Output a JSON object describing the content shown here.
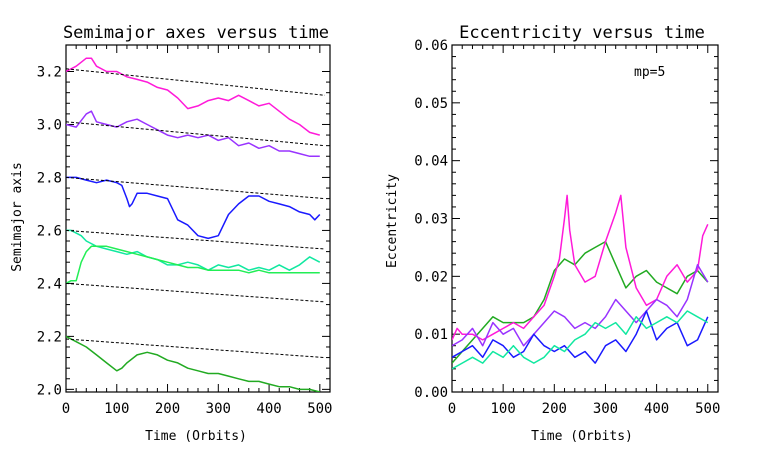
{
  "chart_data": [
    {
      "type": "line",
      "title": "Semimajor axes versus time",
      "xlabel": "Time (Orbits)",
      "ylabel": "Semimajor axis",
      "xlim": [
        0,
        520
      ],
      "ylim": [
        1.99,
        3.3
      ],
      "xticks": [
        "0",
        "100",
        "200",
        "300",
        "400",
        "500"
      ],
      "yticks": [
        "2.0",
        "2.2",
        "2.4",
        "2.6",
        "2.8",
        "3.0",
        "3.2"
      ],
      "series": [
        {
          "name": "magenta",
          "color": "#ff1ad9",
          "x": [
            0,
            20,
            40,
            50,
            60,
            80,
            100,
            120,
            140,
            160,
            180,
            200,
            220,
            240,
            260,
            280,
            300,
            320,
            340,
            360,
            380,
            400,
            420,
            440,
            460,
            480,
            500
          ],
          "y": [
            3.2,
            3.22,
            3.25,
            3.25,
            3.22,
            3.2,
            3.2,
            3.18,
            3.17,
            3.16,
            3.14,
            3.13,
            3.1,
            3.06,
            3.07,
            3.09,
            3.1,
            3.09,
            3.11,
            3.09,
            3.07,
            3.08,
            3.05,
            3.02,
            3.0,
            2.97,
            2.96
          ]
        },
        {
          "name": "violet",
          "color": "#9933ff",
          "x": [
            0,
            20,
            40,
            50,
            60,
            80,
            100,
            120,
            140,
            160,
            180,
            200,
            220,
            240,
            260,
            280,
            300,
            320,
            340,
            360,
            380,
            400,
            420,
            440,
            460,
            480,
            500
          ],
          "y": [
            3.0,
            2.99,
            3.04,
            3.05,
            3.01,
            3.0,
            2.99,
            3.01,
            3.02,
            3.0,
            2.98,
            2.96,
            2.95,
            2.96,
            2.95,
            2.96,
            2.94,
            2.95,
            2.92,
            2.93,
            2.91,
            2.92,
            2.9,
            2.9,
            2.89,
            2.88,
            2.88
          ]
        },
        {
          "name": "blue",
          "color": "#1a1aff",
          "x": [
            0,
            20,
            40,
            60,
            80,
            100,
            110,
            120,
            125,
            130,
            140,
            160,
            180,
            200,
            210,
            220,
            240,
            260,
            280,
            300,
            320,
            340,
            360,
            380,
            400,
            420,
            440,
            460,
            480,
            490,
            500
          ],
          "y": [
            2.8,
            2.8,
            2.79,
            2.78,
            2.79,
            2.78,
            2.77,
            2.72,
            2.69,
            2.7,
            2.74,
            2.74,
            2.73,
            2.72,
            2.68,
            2.64,
            2.62,
            2.58,
            2.57,
            2.58,
            2.66,
            2.7,
            2.73,
            2.73,
            2.71,
            2.7,
            2.69,
            2.67,
            2.66,
            2.64,
            2.66
          ]
        },
        {
          "name": "aquamarine",
          "color": "#11e8a0",
          "x": [
            0,
            10,
            20,
            30,
            40,
            60,
            80,
            100,
            120,
            140,
            160,
            180,
            200,
            220,
            240,
            260,
            280,
            300,
            320,
            340,
            360,
            380,
            400,
            420,
            440,
            460,
            480,
            500
          ],
          "y": [
            2.6,
            2.6,
            2.59,
            2.58,
            2.56,
            2.54,
            2.53,
            2.52,
            2.51,
            2.52,
            2.5,
            2.49,
            2.47,
            2.47,
            2.48,
            2.47,
            2.45,
            2.47,
            2.46,
            2.47,
            2.45,
            2.46,
            2.45,
            2.47,
            2.45,
            2.47,
            2.5,
            2.48
          ]
        },
        {
          "name": "green-aqua",
          "color": "#22ee55",
          "x": [
            0,
            10,
            20,
            30,
            40,
            50,
            60,
            80,
            100,
            120,
            140,
            160,
            180,
            200,
            220,
            240,
            260,
            280,
            300,
            320,
            340,
            360,
            380,
            400,
            420,
            440,
            460,
            480,
            500
          ],
          "y": [
            2.4,
            2.41,
            2.41,
            2.48,
            2.52,
            2.54,
            2.54,
            2.54,
            2.53,
            2.52,
            2.51,
            2.5,
            2.49,
            2.48,
            2.47,
            2.46,
            2.46,
            2.45,
            2.45,
            2.45,
            2.45,
            2.44,
            2.45,
            2.44,
            2.44,
            2.44,
            2.44,
            2.44,
            2.44
          ]
        },
        {
          "name": "green",
          "color": "#22aa22",
          "x": [
            0,
            20,
            40,
            60,
            80,
            100,
            110,
            120,
            140,
            160,
            180,
            200,
            220,
            240,
            260,
            280,
            300,
            320,
            340,
            360,
            380,
            400,
            420,
            440,
            460,
            480,
            500
          ],
          "y": [
            2.2,
            2.18,
            2.16,
            2.13,
            2.1,
            2.07,
            2.08,
            2.1,
            2.13,
            2.14,
            2.13,
            2.11,
            2.1,
            2.08,
            2.07,
            2.06,
            2.06,
            2.05,
            2.04,
            2.03,
            2.03,
            2.02,
            2.01,
            2.01,
            2.0,
            2.0,
            1.99
          ]
        },
        {
          "name": "ref-1",
          "style": "dashed",
          "color": "#000000",
          "x": [
            0,
            510
          ],
          "y": [
            3.21,
            3.11
          ]
        },
        {
          "name": "ref-2",
          "style": "dashed",
          "color": "#000000",
          "x": [
            0,
            510
          ],
          "y": [
            3.01,
            2.92
          ]
        },
        {
          "name": "ref-3",
          "style": "dashed",
          "color": "#000000",
          "x": [
            0,
            510
          ],
          "y": [
            2.8,
            2.72
          ]
        },
        {
          "name": "ref-4",
          "style": "dashed",
          "color": "#000000",
          "x": [
            0,
            510
          ],
          "y": [
            2.6,
            2.53
          ]
        },
        {
          "name": "ref-5",
          "style": "dashed",
          "color": "#000000",
          "x": [
            0,
            510
          ],
          "y": [
            2.4,
            2.33
          ]
        },
        {
          "name": "ref-6",
          "style": "dashed",
          "color": "#000000",
          "x": [
            0,
            510
          ],
          "y": [
            2.19,
            2.12
          ]
        }
      ]
    },
    {
      "type": "line",
      "title": "Eccentricity versus time",
      "xlabel": "Time (Orbits)",
      "ylabel": "Eccentricity",
      "annotation": "mp=5",
      "xlim": [
        0,
        520
      ],
      "ylim": [
        0,
        0.06
      ],
      "xticks": [
        "0",
        "100",
        "200",
        "300",
        "400",
        "500"
      ],
      "yticks": [
        "0.00",
        "0.01",
        "0.02",
        "0.03",
        "0.04",
        "0.05",
        "0.06"
      ],
      "series": [
        {
          "name": "green",
          "color": "#22aa22",
          "x": [
            0,
            20,
            40,
            60,
            80,
            100,
            120,
            140,
            160,
            180,
            200,
            220,
            240,
            260,
            280,
            300,
            320,
            340,
            360,
            380,
            400,
            420,
            440,
            460,
            480,
            500
          ],
          "y": [
            0.005,
            0.007,
            0.009,
            0.011,
            0.013,
            0.012,
            0.012,
            0.012,
            0.013,
            0.016,
            0.021,
            0.023,
            0.022,
            0.024,
            0.025,
            0.026,
            0.022,
            0.018,
            0.02,
            0.021,
            0.019,
            0.018,
            0.017,
            0.02,
            0.021,
            0.019
          ]
        },
        {
          "name": "magenta",
          "color": "#ff1ad9",
          "x": [
            0,
            10,
            20,
            40,
            60,
            80,
            100,
            120,
            140,
            160,
            180,
            200,
            210,
            220,
            225,
            230,
            240,
            260,
            280,
            300,
            320,
            330,
            340,
            360,
            380,
            400,
            420,
            440,
            460,
            480,
            490,
            500
          ],
          "y": [
            0.009,
            0.011,
            0.01,
            0.01,
            0.009,
            0.01,
            0.011,
            0.012,
            0.011,
            0.013,
            0.015,
            0.02,
            0.023,
            0.03,
            0.034,
            0.028,
            0.022,
            0.019,
            0.02,
            0.026,
            0.031,
            0.034,
            0.025,
            0.018,
            0.015,
            0.016,
            0.02,
            0.022,
            0.019,
            0.021,
            0.027,
            0.029
          ]
        },
        {
          "name": "violet",
          "color": "#9933ff",
          "x": [
            0,
            20,
            40,
            60,
            80,
            100,
            120,
            140,
            160,
            180,
            200,
            220,
            240,
            260,
            280,
            300,
            320,
            340,
            360,
            380,
            400,
            420,
            440,
            460,
            480,
            500
          ],
          "y": [
            0.008,
            0.009,
            0.011,
            0.008,
            0.012,
            0.01,
            0.011,
            0.008,
            0.01,
            0.012,
            0.014,
            0.013,
            0.011,
            0.012,
            0.011,
            0.013,
            0.016,
            0.014,
            0.012,
            0.014,
            0.016,
            0.015,
            0.013,
            0.016,
            0.022,
            0.019
          ]
        },
        {
          "name": "blue",
          "color": "#1a1aff",
          "x": [
            0,
            20,
            40,
            60,
            80,
            100,
            120,
            140,
            160,
            180,
            200,
            220,
            240,
            260,
            280,
            300,
            320,
            340,
            360,
            380,
            400,
            420,
            440,
            460,
            480,
            500
          ],
          "y": [
            0.006,
            0.007,
            0.008,
            0.006,
            0.009,
            0.008,
            0.006,
            0.007,
            0.01,
            0.008,
            0.007,
            0.008,
            0.006,
            0.007,
            0.005,
            0.008,
            0.009,
            0.007,
            0.01,
            0.014,
            0.009,
            0.011,
            0.012,
            0.008,
            0.009,
            0.013
          ]
        },
        {
          "name": "aquamarine",
          "color": "#11e8a0",
          "x": [
            0,
            20,
            40,
            60,
            80,
            100,
            120,
            140,
            160,
            180,
            200,
            220,
            240,
            260,
            280,
            300,
            320,
            340,
            360,
            380,
            400,
            420,
            440,
            460,
            480,
            500
          ],
          "y": [
            0.004,
            0.005,
            0.006,
            0.005,
            0.007,
            0.006,
            0.008,
            0.006,
            0.005,
            0.006,
            0.008,
            0.007,
            0.009,
            0.01,
            0.012,
            0.011,
            0.012,
            0.01,
            0.013,
            0.011,
            0.012,
            0.013,
            0.012,
            0.014,
            0.013,
            0.012
          ]
        }
      ]
    }
  ]
}
